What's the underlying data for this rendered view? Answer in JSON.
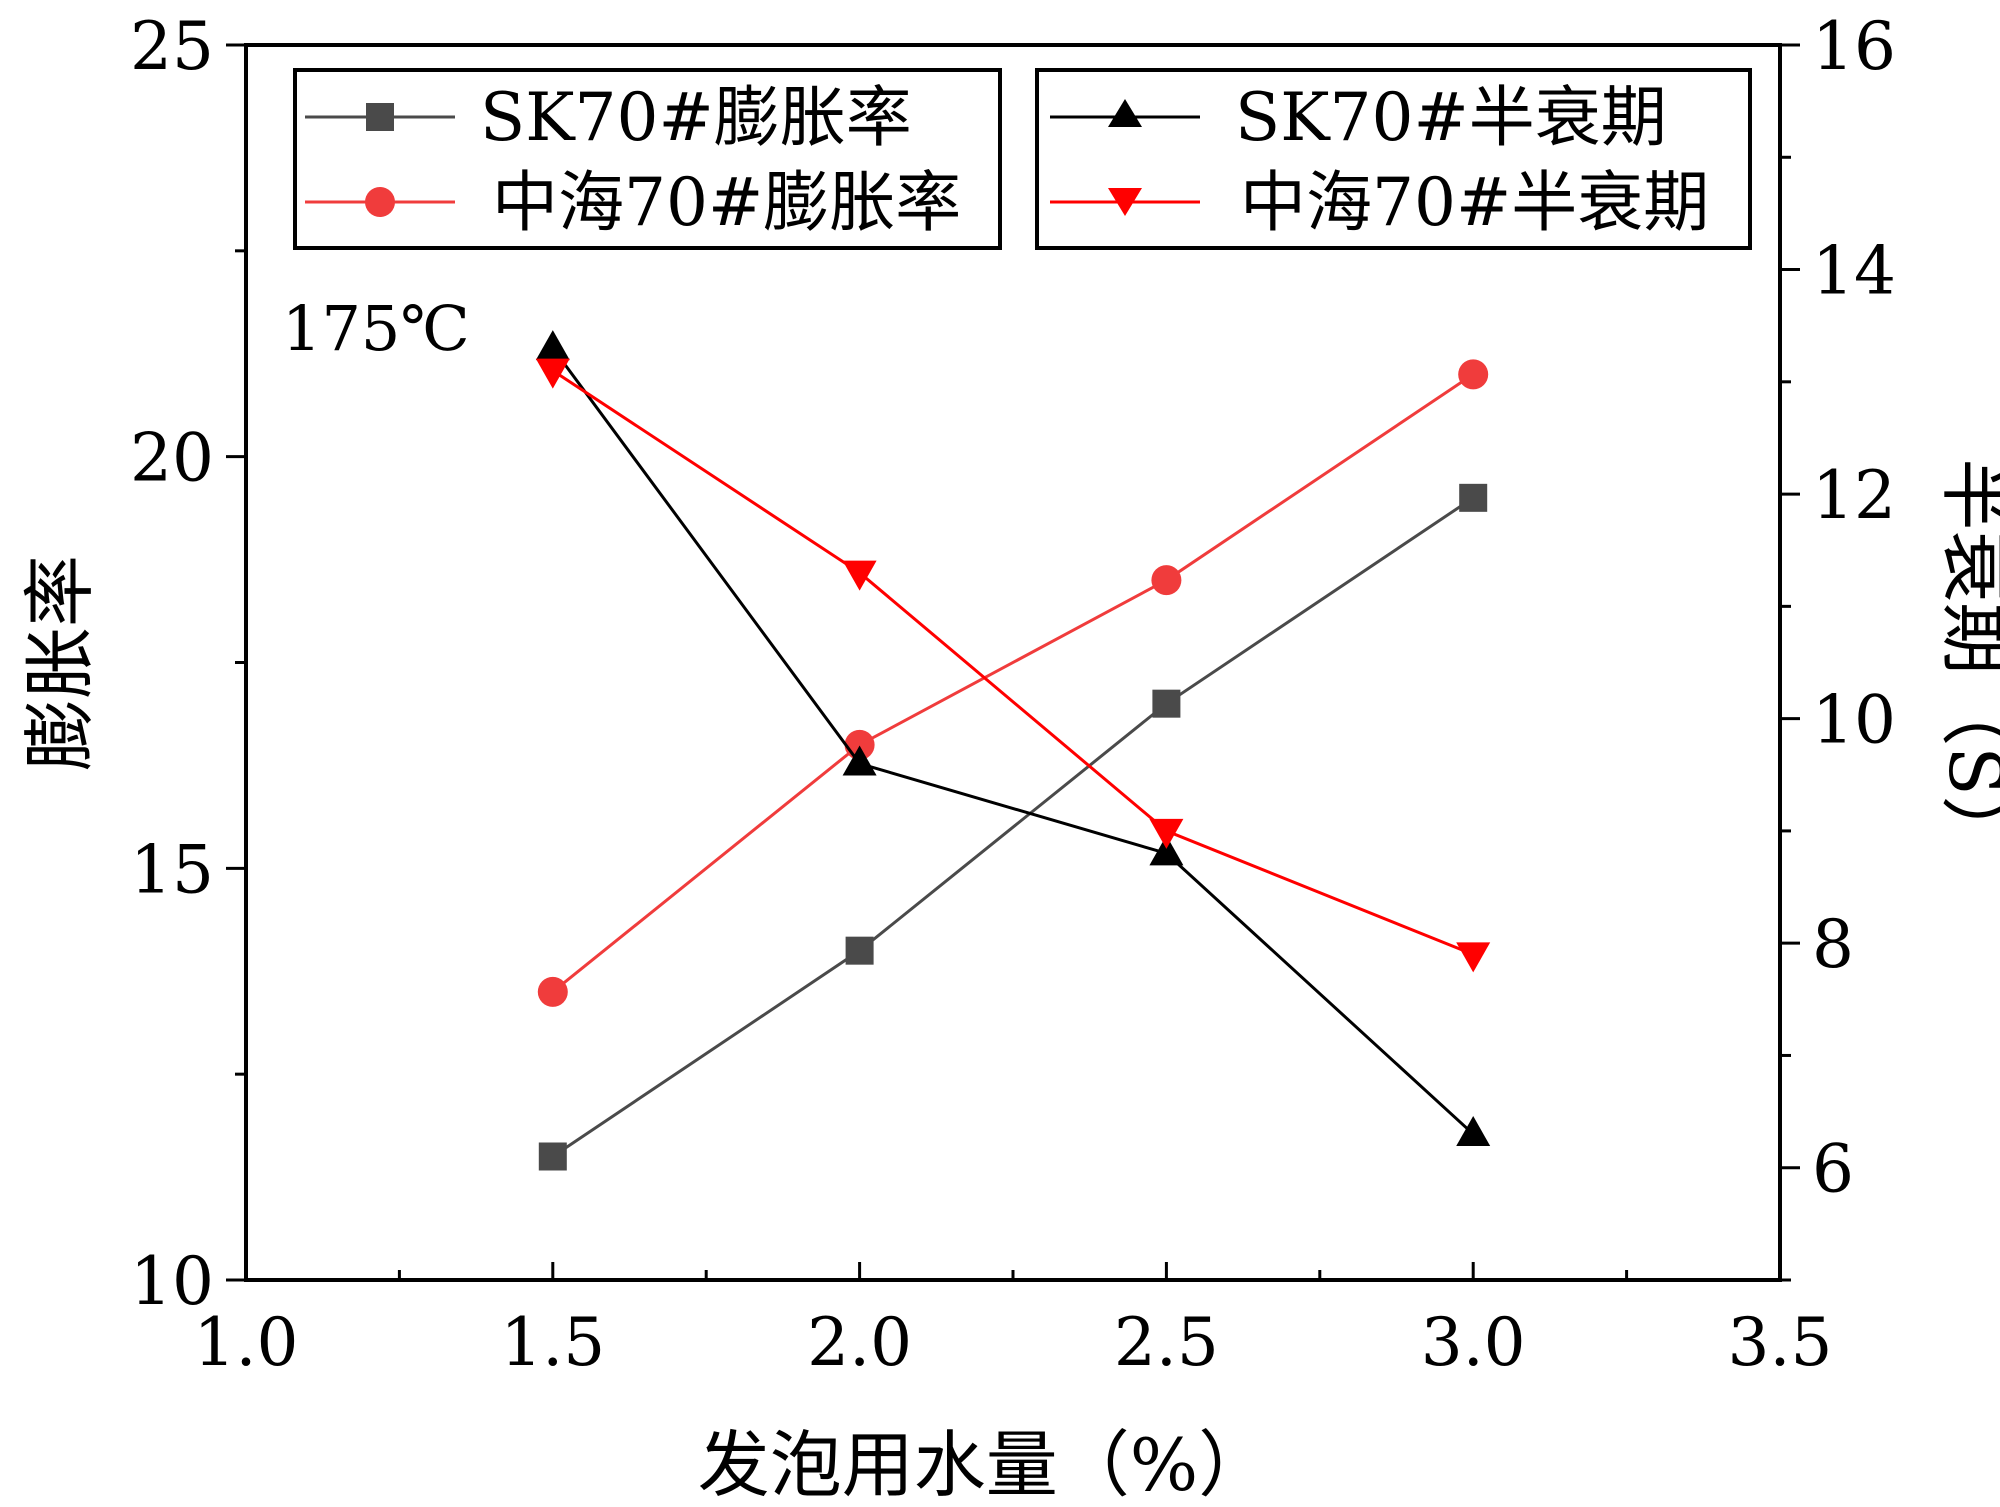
{
  "chart_data": {
    "type": "line",
    "annotation": "175℃",
    "xlabel": "发泡用水量（%）",
    "ylabel_left": "膨胀率",
    "ylabel_right": "半衰期（S）",
    "xlim": [
      1.0,
      3.5
    ],
    "ylim_left": [
      10,
      25
    ],
    "ylim_right": [
      5,
      16
    ],
    "x_ticks": [
      1.0,
      1.5,
      2.0,
      2.5,
      3.0,
      3.5
    ],
    "x_tick_labels": [
      "1.0",
      "1.5",
      "2.0",
      "2.5",
      "3.0",
      "3.5"
    ],
    "y_left_ticks": [
      10,
      15,
      20,
      25
    ],
    "y_left_tick_labels": [
      "10",
      "15",
      "20",
      "25"
    ],
    "y_right_ticks": [
      6,
      8,
      10,
      12,
      14,
      16
    ],
    "y_right_tick_labels": [
      "6",
      "8",
      "10",
      "12",
      "14",
      "16"
    ],
    "grid": false,
    "legend_placement": "top",
    "x": [
      1.5,
      2.0,
      2.5,
      3.0
    ],
    "series": [
      {
        "name": "SK70#膨胀率",
        "axis": "left",
        "marker": "square",
        "color": "#4a4a4a",
        "values": [
          11.5,
          14.0,
          17.0,
          19.5
        ]
      },
      {
        "name": "中海70#膨胀率",
        "axis": "left",
        "marker": "circle",
        "color": "#f03c3c",
        "values": [
          13.5,
          16.5,
          18.5,
          21.0
        ]
      },
      {
        "name": "SK70#半衰期",
        "axis": "right",
        "marker": "triangle-up",
        "color": "#000000",
        "values": [
          13.3,
          9.6,
          8.8,
          6.3
        ]
      },
      {
        "name": "中海70#半衰期",
        "axis": "right",
        "marker": "triangle-down",
        "color": "#ff0000",
        "values": [
          13.1,
          11.3,
          9.0,
          7.9
        ]
      }
    ]
  }
}
